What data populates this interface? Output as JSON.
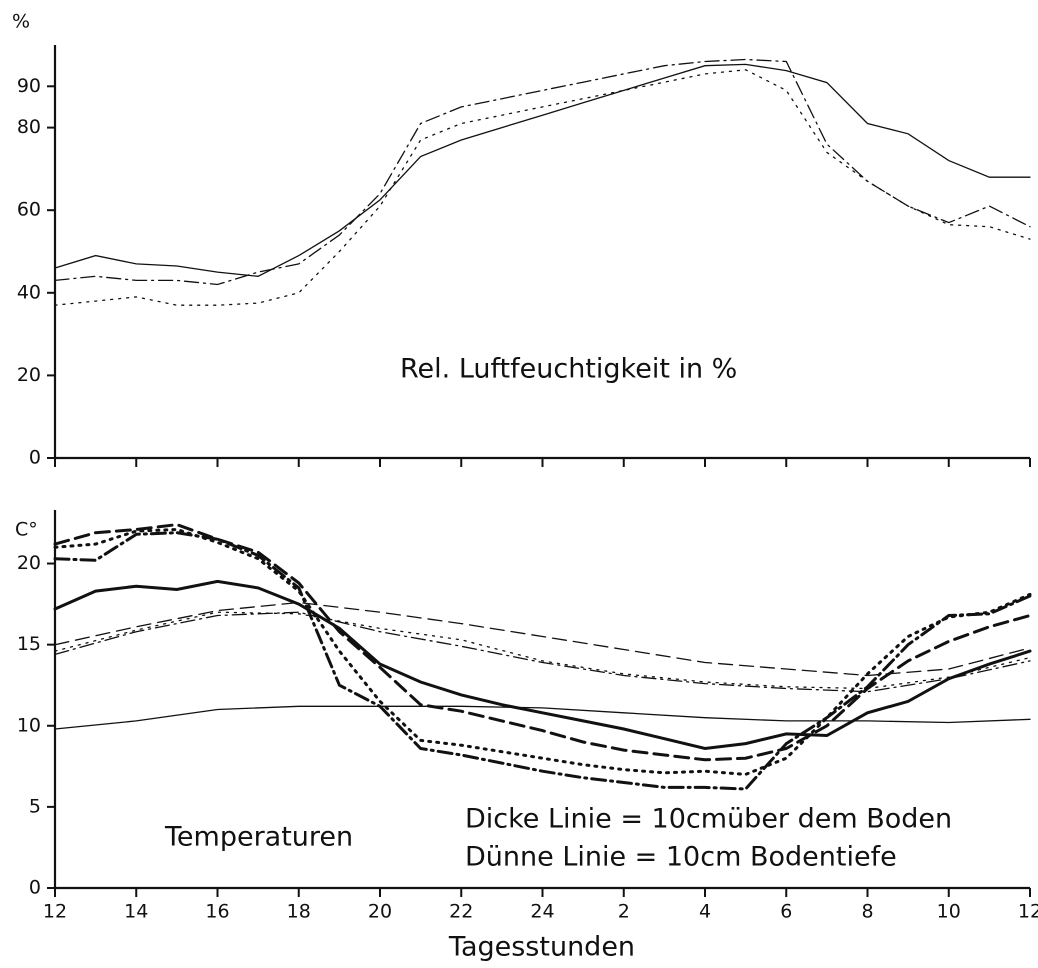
{
  "chart_data": [
    {
      "type": "line",
      "unit_label": "%",
      "annotation": "Rel. Luftfeuchtigkeit in %",
      "x": [
        12,
        13,
        14,
        15,
        16,
        17,
        18,
        19,
        20,
        21,
        22,
        23,
        24,
        25,
        26,
        27,
        28,
        29,
        30,
        31,
        32,
        33,
        34,
        35,
        36
      ],
      "xlim": [
        12,
        36
      ],
      "ylim": [
        0,
        100
      ],
      "yticks": [
        0,
        20,
        40,
        60,
        80,
        90
      ],
      "series": [
        {
          "color": "#111111",
          "dash": "solid",
          "weight": "thin",
          "values": [
            46,
            49,
            47,
            46.5,
            45,
            44,
            49,
            55,
            62.5,
            73,
            77,
            80,
            83,
            86,
            89,
            92,
            95,
            95.3,
            93.8,
            90.9,
            81,
            78.5,
            72,
            68,
            68
          ]
        },
        {
          "color": "#111111",
          "dash": "dashdot",
          "weight": "thin",
          "values": [
            43,
            44,
            43,
            43,
            42,
            45,
            47,
            54,
            64,
            81,
            85,
            87,
            89,
            91,
            93,
            95,
            96,
            96.5,
            96,
            76,
            67,
            61,
            57,
            61,
            56
          ]
        },
        {
          "color": "#111111",
          "dash": "dotted",
          "weight": "thin",
          "values": [
            37,
            38,
            39,
            37,
            37,
            37.5,
            40,
            50,
            61,
            77,
            81,
            83,
            85,
            87,
            89,
            91,
            93,
            94,
            89,
            74,
            67,
            61,
            56.5,
            56,
            53
          ]
        }
      ]
    },
    {
      "type": "line",
      "unit_label": "C°",
      "annotation": "Temperaturen",
      "notes": [
        "Dicke Linie = 10cmüber dem Boden",
        "Dünne Linie = 10cm Bodentiefe"
      ],
      "x_label": "Tagesstunden",
      "x": [
        12,
        13,
        14,
        15,
        16,
        17,
        18,
        19,
        20,
        21,
        22,
        23,
        24,
        25,
        26,
        27,
        28,
        29,
        30,
        31,
        32,
        33,
        34,
        35,
        36
      ],
      "xlim": [
        12,
        36
      ],
      "ylim": [
        0,
        23.3
      ],
      "yticks": [
        0,
        5,
        10,
        15,
        20
      ],
      "xticks": [
        12,
        14,
        16,
        18,
        20,
        22,
        24,
        {
          "value": 26,
          "label": "2"
        },
        {
          "value": 28,
          "label": "4"
        },
        {
          "value": 30,
          "label": "6"
        },
        {
          "value": 32,
          "label": "8"
        },
        {
          "value": 34,
          "label": "10"
        },
        {
          "value": 36,
          "label": "12"
        }
      ],
      "series": [
        {
          "color": "#111111",
          "dash": "solid",
          "weight": "thick",
          "values": [
            17.2,
            18.3,
            18.6,
            18.4,
            18.9,
            18.5,
            17.5,
            16.0,
            13.8,
            12.7,
            11.9,
            11.3,
            10.8,
            10.3,
            9.8,
            9.2,
            8.6,
            8.9,
            9.5,
            9.4,
            10.8,
            11.5,
            12.9,
            13.8,
            14.6
          ]
        },
        {
          "color": "#111111",
          "dash": "dashed",
          "weight": "thick",
          "values": [
            21.2,
            21.9,
            22.1,
            22.4,
            21.5,
            20.7,
            18.8,
            15.8,
            13.6,
            11.3,
            10.9,
            10.3,
            9.7,
            9.0,
            8.5,
            8.2,
            7.9,
            8.0,
            8.6,
            10.0,
            12.3,
            14.0,
            15.2,
            16.1,
            16.8
          ]
        },
        {
          "color": "#111111",
          "dash": "dotted",
          "weight": "thick",
          "values": [
            21.0,
            21.2,
            22.0,
            22.1,
            21.3,
            20.3,
            18.3,
            14.6,
            11.5,
            9.1,
            8.8,
            8.4,
            8.0,
            7.6,
            7.3,
            7.1,
            7.2,
            7.0,
            8.0,
            10.5,
            13.2,
            15.5,
            16.7,
            17.0,
            18.1
          ]
        },
        {
          "color": "#111111",
          "dash": "dashdot",
          "weight": "thick",
          "values": [
            20.3,
            20.2,
            21.8,
            21.9,
            21.5,
            20.5,
            18.5,
            12.5,
            11.2,
            8.6,
            8.2,
            7.7,
            7.2,
            6.8,
            6.5,
            6.2,
            6.2,
            6.1,
            8.9,
            10.5,
            12.4,
            15.0,
            16.8,
            16.9,
            18.0
          ]
        },
        {
          "color": "#111111",
          "dash": "dashed",
          "weight": "thin",
          "x": [
            12,
            14,
            16,
            18,
            20,
            22,
            24,
            26,
            28,
            30,
            32,
            34,
            36
          ],
          "values": [
            15.0,
            16.1,
            17.1,
            17.6,
            17.0,
            16.3,
            15.5,
            14.7,
            13.9,
            13.5,
            13.1,
            13.5,
            14.8
          ]
        },
        {
          "color": "#111111",
          "dash": "dotted",
          "weight": "thin",
          "x": [
            12,
            14,
            16,
            18,
            20,
            22,
            24,
            26,
            28,
            30,
            32,
            34,
            36
          ],
          "values": [
            14.6,
            15.9,
            17.0,
            16.9,
            16.0,
            15.3,
            14.0,
            13.2,
            12.7,
            12.4,
            12.3,
            13.0,
            14.2
          ]
        },
        {
          "color": "#111111",
          "dash": "dashdot",
          "weight": "thin",
          "x": [
            12,
            14,
            16,
            18,
            20,
            22,
            24,
            26,
            28,
            30,
            32,
            34,
            36
          ],
          "values": [
            14.4,
            15.8,
            16.8,
            17.0,
            15.8,
            14.9,
            13.9,
            13.1,
            12.6,
            12.3,
            12.1,
            12.9,
            14.0
          ]
        },
        {
          "color": "#111111",
          "dash": "solid",
          "weight": "thin",
          "x": [
            12,
            14,
            16,
            18,
            20,
            22,
            24,
            26,
            28,
            30,
            32,
            34,
            36
          ],
          "values": [
            9.8,
            10.3,
            11.0,
            11.2,
            11.2,
            11.2,
            11.1,
            10.8,
            10.5,
            10.3,
            10.3,
            10.2,
            10.4
          ]
        }
      ]
    }
  ]
}
